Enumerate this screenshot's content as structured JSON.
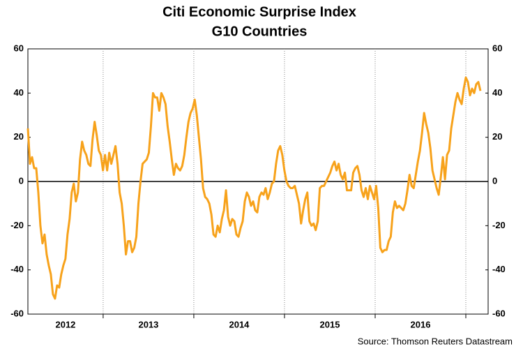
{
  "chart_data": {
    "type": "line",
    "title": "Citi Economic Surprise Index",
    "subtitle": "G10 Countries",
    "source": "Source: Thomson Reuters Datastream",
    "xlim": [
      2012.17,
      2017.246
    ],
    "xticks": [
      {
        "value": 2012.585,
        "label": "2012"
      },
      {
        "value": 2013.5,
        "label": "2013"
      },
      {
        "value": 2014.5,
        "label": "2014"
      },
      {
        "value": 2015.5,
        "label": "2015"
      },
      {
        "value": 2016.5,
        "label": "2016"
      }
    ],
    "xgrid_at": [
      2013,
      2014,
      2015,
      2016,
      2017
    ],
    "ylim": [
      -60,
      60
    ],
    "yticks": [
      -60,
      -40,
      -20,
      0,
      20,
      40,
      60
    ],
    "y2lim": [
      -60,
      60
    ],
    "y2ticks": [
      -60,
      -40,
      -20,
      0,
      20,
      40,
      60
    ],
    "zero_line": 0,
    "x": [
      2012.17,
      2012.193,
      2012.216,
      2012.239,
      2012.262,
      2012.285,
      2012.308,
      2012.331,
      2012.354,
      2012.377,
      2012.4,
      2012.423,
      2012.446,
      2012.469,
      2012.492,
      2012.515,
      2012.538,
      2012.561,
      2012.584,
      2012.607,
      2012.63,
      2012.653,
      2012.676,
      2012.699,
      2012.722,
      2012.745,
      2012.768,
      2012.791,
      2012.814,
      2012.837,
      2012.86,
      2012.883,
      2012.906,
      2012.929,
      2012.952,
      2012.975,
      2012.998,
      2013.021,
      2013.044,
      2013.067,
      2013.09,
      2013.113,
      2013.136,
      2013.159,
      2013.182,
      2013.205,
      2013.228,
      2013.251,
      2013.274,
      2013.297,
      2013.32,
      2013.343,
      2013.366,
      2013.389,
      2013.412,
      2013.435,
      2013.458,
      2013.481,
      2013.504,
      2013.527,
      2013.55,
      2013.573,
      2013.596,
      2013.619,
      2013.642,
      2013.665,
      2013.688,
      2013.711,
      2013.734,
      2013.757,
      2013.78,
      2013.803,
      2013.826,
      2013.849,
      2013.872,
      2013.895,
      2013.918,
      2013.941,
      2013.964,
      2013.987,
      2014.01,
      2014.033,
      2014.056,
      2014.079,
      2014.102,
      2014.125,
      2014.148,
      2014.171,
      2014.194,
      2014.217,
      2014.24,
      2014.263,
      2014.286,
      2014.309,
      2014.332,
      2014.355,
      2014.378,
      2014.401,
      2014.424,
      2014.447,
      2014.47,
      2014.493,
      2014.516,
      2014.539,
      2014.562,
      2014.585,
      2014.608,
      2014.631,
      2014.654,
      2014.677,
      2014.7,
      2014.723,
      2014.746,
      2014.769,
      2014.792,
      2014.815,
      2014.838,
      2014.861,
      2014.884,
      2014.907,
      2014.93,
      2014.953,
      2014.976,
      2014.999,
      2015.022,
      2015.045,
      2015.068,
      2015.091,
      2015.114,
      2015.137,
      2015.16,
      2015.183,
      2015.206,
      2015.229,
      2015.252,
      2015.275,
      2015.298,
      2015.321,
      2015.344,
      2015.367,
      2015.39,
      2015.413,
      2015.436,
      2015.459,
      2015.482,
      2015.505,
      2015.528,
      2015.551,
      2015.574,
      2015.597,
      2015.62,
      2015.643,
      2015.666,
      2015.689,
      2015.712,
      2015.735,
      2015.758,
      2015.781,
      2015.804,
      2015.827,
      2015.85,
      2015.873,
      2015.896,
      2015.919,
      2015.942,
      2015.965,
      2015.988,
      2016.011,
      2016.034,
      2016.057,
      2016.08,
      2016.103,
      2016.126,
      2016.149,
      2016.172,
      2016.195,
      2016.218,
      2016.241,
      2016.264,
      2016.287,
      2016.31,
      2016.333,
      2016.356,
      2016.379,
      2016.402,
      2016.425,
      2016.448,
      2016.471,
      2016.494,
      2016.517,
      2016.54,
      2016.563,
      2016.586,
      2016.609,
      2016.632,
      2016.655,
      2016.678,
      2016.701,
      2016.724,
      2016.747,
      2016.77,
      2016.793,
      2016.816,
      2016.839,
      2016.862,
      2016.885,
      2016.908,
      2016.931,
      2016.954,
      2016.977,
      2017.0,
      2017.023,
      2017.046,
      2017.069,
      2017.092,
      2017.115,
      2017.138,
      2017.161
    ],
    "series": [
      {
        "color": "#f7a21b",
        "values": [
          24,
          8,
          11,
          6,
          6,
          -5,
          -20,
          -28,
          -24,
          -33,
          -38,
          -42,
          -51,
          -53,
          -47,
          -48,
          -42,
          -38,
          -35,
          -24,
          -17,
          -5,
          -1,
          -9,
          -5,
          10,
          18,
          14,
          12,
          8,
          7,
          19,
          27,
          21,
          14,
          12,
          5,
          12,
          5,
          13,
          8,
          12,
          16,
          8,
          -5,
          -10,
          -20,
          -33,
          -27,
          -27,
          -32,
          -30,
          -25,
          -10,
          0,
          8,
          9,
          10,
          13,
          25,
          40,
          38,
          38,
          32,
          40,
          38,
          35,
          25,
          18,
          10,
          3,
          8,
          6,
          5,
          7,
          12,
          20,
          27,
          31,
          33,
          37,
          30,
          20,
          10,
          -3,
          -7,
          -8,
          -10,
          -15,
          -24,
          -25,
          -20,
          -23,
          -17,
          -13,
          -4,
          -16,
          -20,
          -17,
          -18,
          -24,
          -25,
          -21,
          -18,
          -9,
          -5,
          -7,
          -11,
          -9,
          -13,
          -14,
          -7,
          -5,
          -6,
          -3,
          -8,
          -5,
          -1,
          0,
          8,
          14,
          16,
          12,
          5,
          0,
          -2,
          -3,
          -3,
          -2,
          -6,
          -10,
          -19,
          -13,
          -8,
          -5,
          -18,
          -20,
          -19,
          -22,
          -18,
          -3,
          -2,
          -2,
          0,
          2,
          4,
          7,
          9,
          5,
          8,
          3,
          1,
          4,
          -4,
          -4,
          -4,
          4,
          6,
          7,
          3,
          -4,
          -7,
          -3,
          -8,
          -2,
          -5,
          -8,
          -2,
          -12,
          -30,
          -32,
          -31,
          -31,
          -27,
          -25,
          -14,
          -9,
          -12,
          -11,
          -12,
          -13,
          -10,
          -4,
          3,
          -2,
          -3,
          3,
          9,
          14,
          22,
          31,
          26,
          22,
          15,
          5,
          1,
          -3,
          -6,
          2,
          11,
          1,
          12,
          14,
          24,
          30,
          36,
          40,
          37,
          35,
          42,
          47,
          45,
          39,
          42,
          40,
          44,
          45,
          41
        ]
      }
    ]
  }
}
